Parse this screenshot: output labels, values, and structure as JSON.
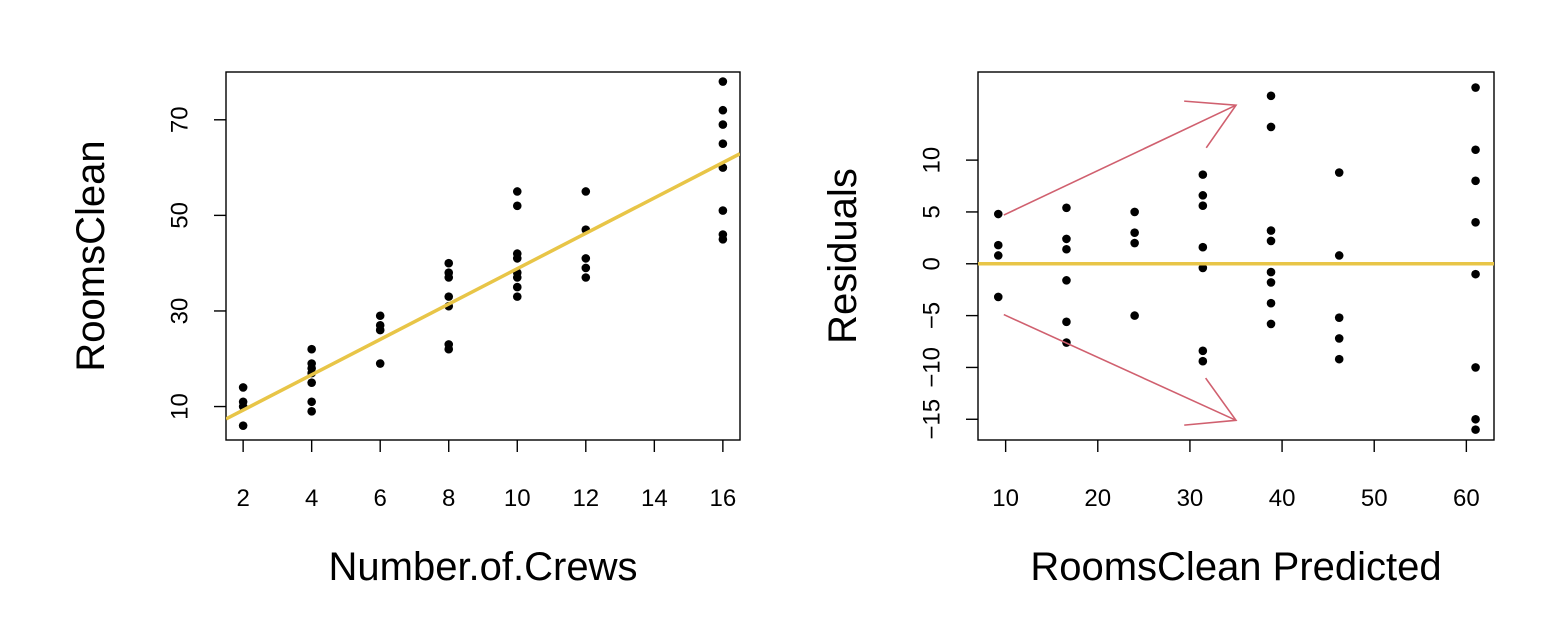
{
  "chart_data": [
    {
      "type": "scatter",
      "title": "",
      "xlabel": "Number.of.Crews",
      "ylabel": "RoomsClean",
      "xlim": [
        1.5,
        16.5
      ],
      "ylim": [
        3,
        80
      ],
      "x_ticks": [
        2,
        4,
        6,
        8,
        10,
        12,
        14,
        16
      ],
      "y_ticks": [
        10,
        30,
        50,
        70
      ],
      "x_tick_labels": [
        "2",
        "4",
        "6",
        "8",
        "10",
        "12",
        "14",
        "16"
      ],
      "y_tick_labels": [
        "10",
        "30",
        "50",
        "70"
      ],
      "grid": false,
      "legend": "none",
      "series": [
        {
          "type": "scatter",
          "color": "#000000",
          "points": [
            [
              2,
              6
            ],
            [
              2,
              10
            ],
            [
              2,
              11
            ],
            [
              2,
              14
            ],
            [
              4,
              9
            ],
            [
              4,
              11
            ],
            [
              4,
              15
            ],
            [
              4,
              17
            ],
            [
              4,
              18
            ],
            [
              4,
              19
            ],
            [
              4,
              22
            ],
            [
              6,
              19
            ],
            [
              6,
              26
            ],
            [
              6,
              27
            ],
            [
              6,
              29
            ],
            [
              8,
              22
            ],
            [
              8,
              23
            ],
            [
              8,
              31
            ],
            [
              8,
              33
            ],
            [
              8,
              37
            ],
            [
              8,
              38
            ],
            [
              8,
              40
            ],
            [
              10,
              33
            ],
            [
              10,
              35
            ],
            [
              10,
              37
            ],
            [
              10,
              38
            ],
            [
              10,
              41
            ],
            [
              10,
              42
            ],
            [
              10,
              52
            ],
            [
              10,
              55
            ],
            [
              12,
              37
            ],
            [
              12,
              39
            ],
            [
              12,
              41
            ],
            [
              12,
              47
            ],
            [
              12,
              55
            ],
            [
              16,
              45
            ],
            [
              16,
              46
            ],
            [
              16,
              51
            ],
            [
              16,
              60
            ],
            [
              16,
              65
            ],
            [
              16,
              69
            ],
            [
              16,
              72
            ],
            [
              16,
              78
            ]
          ]
        },
        {
          "type": "line",
          "color": "#E8C547",
          "points": [
            [
              1.5,
              7.4
            ],
            [
              16.5,
              62.9
            ]
          ]
        }
      ]
    },
    {
      "type": "scatter",
      "title": "",
      "xlabel": "RoomsClean Predicted",
      "ylabel": "Residuals",
      "xlim": [
        7,
        63
      ],
      "ylim": [
        -17,
        18.5
      ],
      "x_ticks": [
        10,
        20,
        30,
        40,
        50,
        60
      ],
      "y_ticks": [
        -15,
        -10,
        -5,
        0,
        5,
        10
      ],
      "x_tick_labels": [
        "10",
        "20",
        "30",
        "40",
        "50",
        "60"
      ],
      "y_tick_labels": [
        "−15",
        "−10",
        "−5",
        "0",
        "5",
        "10"
      ],
      "grid": false,
      "legend": "none",
      "series": [
        {
          "type": "scatter",
          "color": "#000000",
          "points": [
            [
              9.2,
              4.8
            ],
            [
              9.2,
              1.8
            ],
            [
              9.2,
              0.8
            ],
            [
              9.2,
              -3.2
            ],
            [
              16.6,
              5.4
            ],
            [
              16.6,
              2.4
            ],
            [
              16.6,
              1.4
            ],
            [
              16.6,
              -1.6
            ],
            [
              16.6,
              -5.6
            ],
            [
              16.6,
              -7.6
            ],
            [
              24,
              5
            ],
            [
              24,
              3
            ],
            [
              24,
              2
            ],
            [
              24,
              -5
            ],
            [
              31.4,
              8.6
            ],
            [
              31.4,
              6.6
            ],
            [
              31.4,
              5.6
            ],
            [
              31.4,
              1.6
            ],
            [
              31.4,
              -0.4
            ],
            [
              31.4,
              -8.4
            ],
            [
              31.4,
              -9.4
            ],
            [
              38.8,
              16.2
            ],
            [
              38.8,
              13.2
            ],
            [
              38.8,
              3.2
            ],
            [
              38.8,
              2.2
            ],
            [
              38.8,
              -0.8
            ],
            [
              38.8,
              -1.8
            ],
            [
              38.8,
              -3.8
            ],
            [
              38.8,
              -5.8
            ],
            [
              46.2,
              8.8
            ],
            [
              46.2,
              0.8
            ],
            [
              46.2,
              -5.2
            ],
            [
              46.2,
              -7.2
            ],
            [
              46.2,
              -9.2
            ],
            [
              61,
              17
            ],
            [
              61,
              11
            ],
            [
              61,
              8
            ],
            [
              61,
              4
            ],
            [
              61,
              -1
            ],
            [
              61,
              -10
            ],
            [
              61,
              -15
            ],
            [
              61,
              -16
            ]
          ]
        },
        {
          "type": "line",
          "color": "#E8C547",
          "points": [
            [
              7,
              0
            ],
            [
              63,
              0
            ]
          ]
        }
      ],
      "annotations": [
        {
          "type": "arrow",
          "color": "#D0606F",
          "from": [
            9.8,
            4.7
          ],
          "to": [
            35,
            15.3
          ]
        },
        {
          "type": "arrow",
          "color": "#D0606F",
          "from": [
            9.8,
            -4.9
          ],
          "to": [
            35,
            -15.1
          ]
        }
      ]
    }
  ]
}
